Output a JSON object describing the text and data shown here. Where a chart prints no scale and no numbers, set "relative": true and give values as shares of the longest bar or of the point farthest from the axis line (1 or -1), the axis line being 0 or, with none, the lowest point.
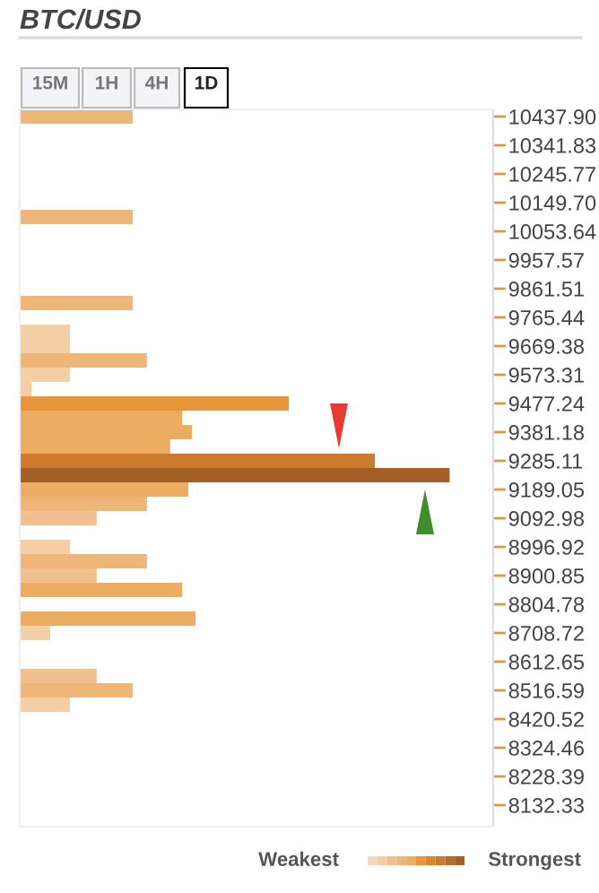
{
  "chart_data": {
    "type": "bar",
    "orientation": "horizontal",
    "relative": true,
    "title": "BTC/USD",
    "categories": [
      "10437.90",
      null,
      "10341.83",
      null,
      "10245.77",
      null,
      "10149.70",
      null,
      "10053.64",
      null,
      "9957.57",
      null,
      "9861.51",
      null,
      "9765.44",
      null,
      "9669.38",
      null,
      "9573.31",
      null,
      "9477.24",
      null,
      "9381.18",
      null,
      "9285.11",
      null,
      "9189.05",
      null,
      "9092.98",
      null,
      "8996.92",
      null,
      "8900.85",
      null,
      "8804.78",
      null,
      "8708.72",
      null,
      "8612.65",
      null,
      "8516.59",
      null,
      "8420.52",
      null,
      "8324.46",
      null,
      "8228.39",
      null,
      "8132.33",
      null
    ],
    "values": [
      0.263,
      null,
      null,
      null,
      null,
      null,
      null,
      0.263,
      null,
      null,
      null,
      null,
      null,
      0.263,
      null,
      0.117,
      0.117,
      0.296,
      0.117,
      0.028,
      0.626,
      0.378,
      0.401,
      0.35,
      0.826,
      1,
      0.392,
      0.296,
      0.179,
      null,
      0.117,
      0.296,
      0.179,
      0.378,
      null,
      0.409,
      0.071,
      null,
      null,
      0.179,
      0.263,
      0.117,
      null,
      null,
      null,
      null,
      null,
      null,
      null,
      null
    ],
    "colors": [
      "#eeb676",
      null,
      null,
      null,
      null,
      null,
      null,
      "#eeb676",
      null,
      null,
      null,
      null,
      null,
      "#eeb676",
      null,
      "#f4cfa5",
      "#f4cfa5",
      "#eeb676",
      "#f4cfa5",
      "#f4cfa5",
      "#e8943a",
      "#ecac62",
      "#ecac62",
      "#ecac62",
      "#cc7a30",
      "#a35f26",
      "#ecac62",
      "#eeb676",
      "#f0c08f",
      null,
      "#f4cfa5",
      "#eeb676",
      "#f0c08f",
      "#ecac62",
      null,
      "#ecac62",
      "#f4cfa5",
      null,
      null,
      "#f0c08f",
      "#eeb676",
      "#f4cfa5",
      null,
      null,
      null,
      null,
      null,
      null,
      null,
      null
    ],
    "annotations": [
      "15M",
      "1H",
      "4H",
      "1D",
      "Weakest",
      "Strongest"
    ],
    "grid": false,
    "legend": false
  }
}
